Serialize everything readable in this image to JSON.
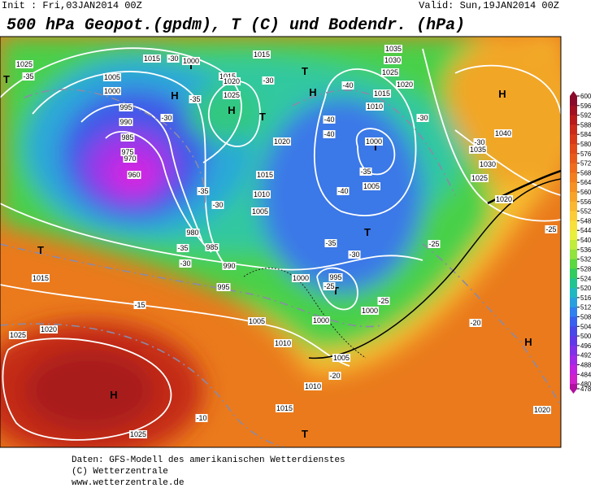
{
  "header": {
    "init": "Init : Fri,03JAN2014 00Z",
    "valid": "Valid: Sun,19JAN2014 00Z",
    "title": "500 hPa Geopot.(gpdm), T (C) und Bodendr. (hPa)"
  },
  "colorbar": {
    "labels": [
      600,
      596,
      592,
      588,
      584,
      580,
      576,
      572,
      568,
      564,
      560,
      556,
      552,
      548,
      544,
      540,
      536,
      532,
      528,
      524,
      520,
      516,
      512,
      508,
      504,
      500,
      496,
      492,
      488,
      484,
      480,
      478
    ],
    "colors": [
      "#8a0a2a",
      "#a01020",
      "#b81a1a",
      "#cc2a18",
      "#d83a18",
      "#e24a18",
      "#e85a1a",
      "#ee6c1c",
      "#f27e1e",
      "#f59022",
      "#f8a428",
      "#fab830",
      "#fccc36",
      "#f8e03a",
      "#e8f03c",
      "#c0ec3c",
      "#90e43c",
      "#5cd840",
      "#30cc60",
      "#20c490",
      "#20b8c0",
      "#28a0e0",
      "#3080f0",
      "#3860f0",
      "#4848e8",
      "#6038e8",
      "#8030e8",
      "#a028e8",
      "#c020e0",
      "#d020c8",
      "#b010a0"
    ]
  },
  "map": {
    "pressure_centers": [
      "H",
      "H",
      "H",
      "H",
      "H",
      "H",
      "T",
      "T",
      "T",
      "T",
      "T",
      "T",
      "T",
      "T",
      "T"
    ],
    "isobar_labels": [
      "1025",
      "1015",
      "1000",
      "1015",
      "1035",
      "1030",
      "1025",
      "1020",
      "1015",
      "1010",
      "1005",
      "1000",
      "995",
      "990",
      "985",
      "975",
      "970",
      "960",
      "980",
      "985",
      "990",
      "995",
      "1015",
      "1020",
      "1025",
      "1025",
      "1000",
      "1005",
      "1020",
      "1015",
      "1010",
      "1005",
      "1000",
      "995",
      "1000",
      "1000",
      "1005",
      "1010",
      "1005",
      "1010",
      "1015",
      "1040",
      "1035",
      "1030",
      "1025",
      "1020",
      "1020",
      "1015",
      "1020",
      "1025"
    ],
    "temperature_labels": [
      "-35",
      "-30",
      "-35",
      "-30",
      "-30",
      "-40",
      "-40",
      "-40",
      "-35",
      "-40",
      "-30",
      "-30",
      "-35",
      "-30",
      "-35",
      "-30",
      "-35",
      "-30",
      "-25",
      "-25",
      "-25",
      "-20",
      "-20",
      "-15",
      "-10",
      "-25"
    ]
  },
  "footer": [
    "Daten: GFS-Modell des amerikanischen Wetterdienstes",
    "(C) Wetterzentrale",
    "www.wetterzentrale.de"
  ]
}
